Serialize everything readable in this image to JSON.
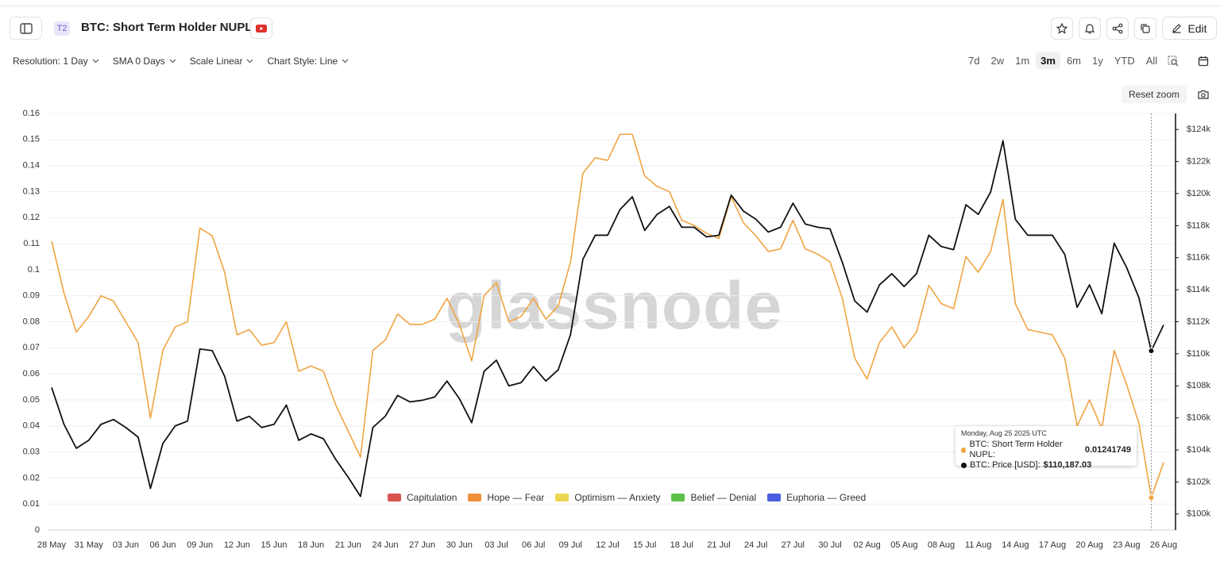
{
  "header": {
    "badge": "T2",
    "title": "BTC: Short Term Holder NUPL",
    "edit": "Edit"
  },
  "toolbar": {
    "controls": [
      "Resolution: 1 Day",
      "SMA 0 Days",
      "Scale Linear",
      "Chart Style: Line"
    ],
    "ranges": [
      "7d",
      "2w",
      "1m",
      "3m",
      "6m",
      "1y",
      "YTD",
      "All"
    ],
    "active_range": "3m",
    "reset_zoom": "Reset zoom"
  },
  "watermark": "glassnode",
  "chart_data": {
    "type": "line",
    "categories": [
      "28 May",
      null,
      null,
      "31 May",
      null,
      null,
      "03 Jun",
      null,
      null,
      "06 Jun",
      null,
      null,
      "09 Jun",
      null,
      null,
      "12 Jun",
      null,
      null,
      "15 Jun",
      null,
      null,
      "18 Jun",
      null,
      null,
      "21 Jun",
      null,
      null,
      "24 Jun",
      null,
      null,
      "27 Jun",
      null,
      null,
      "30 Jun",
      null,
      null,
      "03 Jul",
      null,
      null,
      "06 Jul",
      null,
      null,
      "09 Jul",
      null,
      null,
      "12 Jul",
      null,
      null,
      "15 Jul",
      null,
      null,
      "18 Jul",
      null,
      null,
      "21 Jul",
      null,
      null,
      "24 Jul",
      null,
      null,
      "27 Jul",
      null,
      null,
      "30 Jul",
      null,
      null,
      "02 Aug",
      null,
      null,
      "05 Aug",
      null,
      null,
      "08 Aug",
      null,
      null,
      "11 Aug",
      null,
      null,
      "14 Aug",
      null,
      null,
      "17 Aug",
      null,
      null,
      "20 Aug",
      null,
      null,
      "23 Aug",
      null,
      null,
      "26 Aug"
    ],
    "series": [
      {
        "name": "BTC: Short Term Holder NUPL",
        "color": "#f0a443",
        "values": [
          0.111,
          0.091,
          0.076,
          0.082,
          0.09,
          0.088,
          0.08,
          0.072,
          0.043,
          0.069,
          0.078,
          0.08,
          0.116,
          0.113,
          0.099,
          0.075,
          0.077,
          0.071,
          0.072,
          0.08,
          0.061,
          0.063,
          0.061,
          0.048,
          0.038,
          0.028,
          0.069,
          0.073,
          0.083,
          0.079,
          0.079,
          0.081,
          0.089,
          0.079,
          0.065,
          0.09,
          0.095,
          0.08,
          0.082,
          0.089,
          0.081,
          0.086,
          0.103,
          0.137,
          0.143,
          0.142,
          0.152,
          0.152,
          0.136,
          0.132,
          0.13,
          0.119,
          0.117,
          0.114,
          0.112,
          0.128,
          0.118,
          0.113,
          0.107,
          0.108,
          0.119,
          0.108,
          0.106,
          0.103,
          0.089,
          0.066,
          0.058,
          0.072,
          0.078,
          0.07,
          0.076,
          0.094,
          0.087,
          0.085,
          0.105,
          0.099,
          0.107,
          0.127,
          0.087,
          0.077,
          0.076,
          0.075,
          0.066,
          0.04,
          0.05,
          0.039,
          0.069,
          0.056,
          0.041,
          0.01241749,
          0.026
        ]
      },
      {
        "name": "BTC: Price [USD]",
        "color": "#111111",
        "axis": "y2",
        "values": [
          107900,
          105600,
          104100,
          104600,
          105600,
          105900,
          105400,
          104800,
          101600,
          104400,
          105500,
          105800,
          110300,
          110200,
          108600,
          105800,
          106100,
          105400,
          105600,
          106800,
          104600,
          105000,
          104700,
          103400,
          102300,
          101100,
          105400,
          106100,
          107400,
          107000,
          107100,
          107300,
          108300,
          107200,
          105700,
          108900,
          109600,
          108000,
          108200,
          109200,
          108300,
          109000,
          111200,
          115900,
          117400,
          117400,
          119000,
          119800,
          117700,
          118700,
          119200,
          117900,
          117900,
          117300,
          117400,
          119900,
          118900,
          118400,
          117600,
          117900,
          119400,
          118100,
          117900,
          117800,
          115700,
          113300,
          112600,
          114300,
          115000,
          114200,
          115000,
          117400,
          116700,
          116500,
          119300,
          118700,
          120100,
          123300,
          118400,
          117400,
          117400,
          117400,
          116200,
          112900,
          114300,
          112500,
          116900,
          115400,
          113500,
          110187.03,
          111800
        ],
        "value_labels": [
          null,
          null,
          null,
          null,
          null,
          null,
          null,
          null,
          null,
          null,
          null,
          null,
          null,
          null,
          null,
          null,
          null,
          null,
          null,
          null,
          null,
          null,
          null,
          null,
          null,
          null,
          null,
          null,
          null,
          null,
          null,
          null,
          null,
          null,
          null,
          null,
          null,
          null,
          null,
          null,
          null,
          null,
          null,
          null,
          null,
          null,
          null,
          null,
          null,
          null,
          null,
          null,
          null,
          null,
          null,
          null,
          null,
          null,
          null,
          null,
          null,
          null,
          null,
          null,
          null,
          null,
          null,
          null,
          null,
          null,
          null,
          null,
          null,
          null,
          null,
          null,
          null,
          null,
          null,
          null,
          null,
          null,
          null,
          null,
          null,
          null,
          null,
          null,
          null,
          "$110,187.03",
          null
        ]
      }
    ],
    "ylim": [
      0,
      0.16
    ],
    "yticks": [
      0,
      0.01,
      0.02,
      0.03,
      0.04,
      0.05,
      0.06,
      0.07,
      0.08,
      0.09,
      0.1,
      0.11,
      0.12,
      0.13,
      0.14,
      0.15,
      0.16
    ],
    "y2lim": [
      99000,
      125000
    ],
    "y2ticks": [
      {
        "value": 100000,
        "label": "$100k"
      },
      {
        "value": 102000,
        "label": "$102k"
      },
      {
        "value": 104000,
        "label": "$104k"
      },
      {
        "value": 106000,
        "label": "$106k"
      },
      {
        "value": 108000,
        "label": "$108k"
      },
      {
        "value": 110000,
        "label": "$110k"
      },
      {
        "value": 112000,
        "label": "$112k"
      },
      {
        "value": 114000,
        "label": "$114k"
      },
      {
        "value": 116000,
        "label": "$116k"
      },
      {
        "value": 118000,
        "label": "$118k"
      },
      {
        "value": 120000,
        "label": "$120k"
      },
      {
        "value": 122000,
        "label": "$122k"
      },
      {
        "value": 124000,
        "label": "$124k"
      }
    ],
    "grid": true,
    "legend": [
      {
        "name": "Capitulation",
        "color": "#d9534f"
      },
      {
        "name": "Hope — Fear",
        "color": "#ee8f3a"
      },
      {
        "name": "Optimism — Anxiety",
        "color": "#ecd653"
      },
      {
        "name": "Belief — Denial",
        "color": "#5cc04a"
      },
      {
        "name": "Euphoria — Greed",
        "color": "#4a5fe0"
      }
    ],
    "tooltip": {
      "title": "Monday, Aug 25 2025 UTC"
    }
  }
}
